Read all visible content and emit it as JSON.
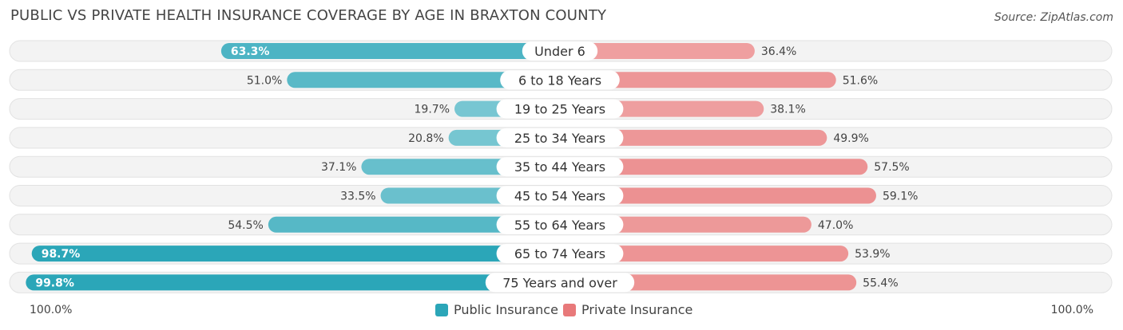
{
  "chart_data": {
    "type": "bar",
    "orientation": "horizontal-diverging",
    "title": "PUBLIC VS PRIVATE HEALTH INSURANCE COVERAGE BY AGE IN BRAXTON COUNTY",
    "source": "Source: ZipAtlas.com",
    "categories": [
      "Under 6",
      "6 to 18 Years",
      "19 to 25 Years",
      "25 to 34 Years",
      "35 to 44 Years",
      "45 to 54 Years",
      "55 to 64 Years",
      "65 to 74 Years",
      "75 Years and over"
    ],
    "series": [
      {
        "name": "Public Insurance",
        "color": "#2ba6b8",
        "values": [
          63.3,
          51.0,
          19.7,
          20.8,
          37.1,
          33.5,
          54.5,
          98.7,
          99.8
        ],
        "labels": [
          "63.3%",
          "51.0%",
          "19.7%",
          "20.8%",
          "37.1%",
          "33.5%",
          "54.5%",
          "98.7%",
          "99.8%"
        ]
      },
      {
        "name": "Private Insurance",
        "color": "#e8797a",
        "values": [
          36.4,
          51.6,
          38.1,
          49.9,
          57.5,
          59.1,
          47.0,
          53.9,
          55.4
        ],
        "labels": [
          "36.4%",
          "51.6%",
          "38.1%",
          "49.9%",
          "57.5%",
          "59.1%",
          "47.0%",
          "53.9%",
          "55.4%"
        ]
      }
    ],
    "axis": {
      "left_label": "100.0%",
      "right_label": "100.0%",
      "range": [
        0,
        100
      ]
    },
    "legend_position": "bottom-center"
  }
}
